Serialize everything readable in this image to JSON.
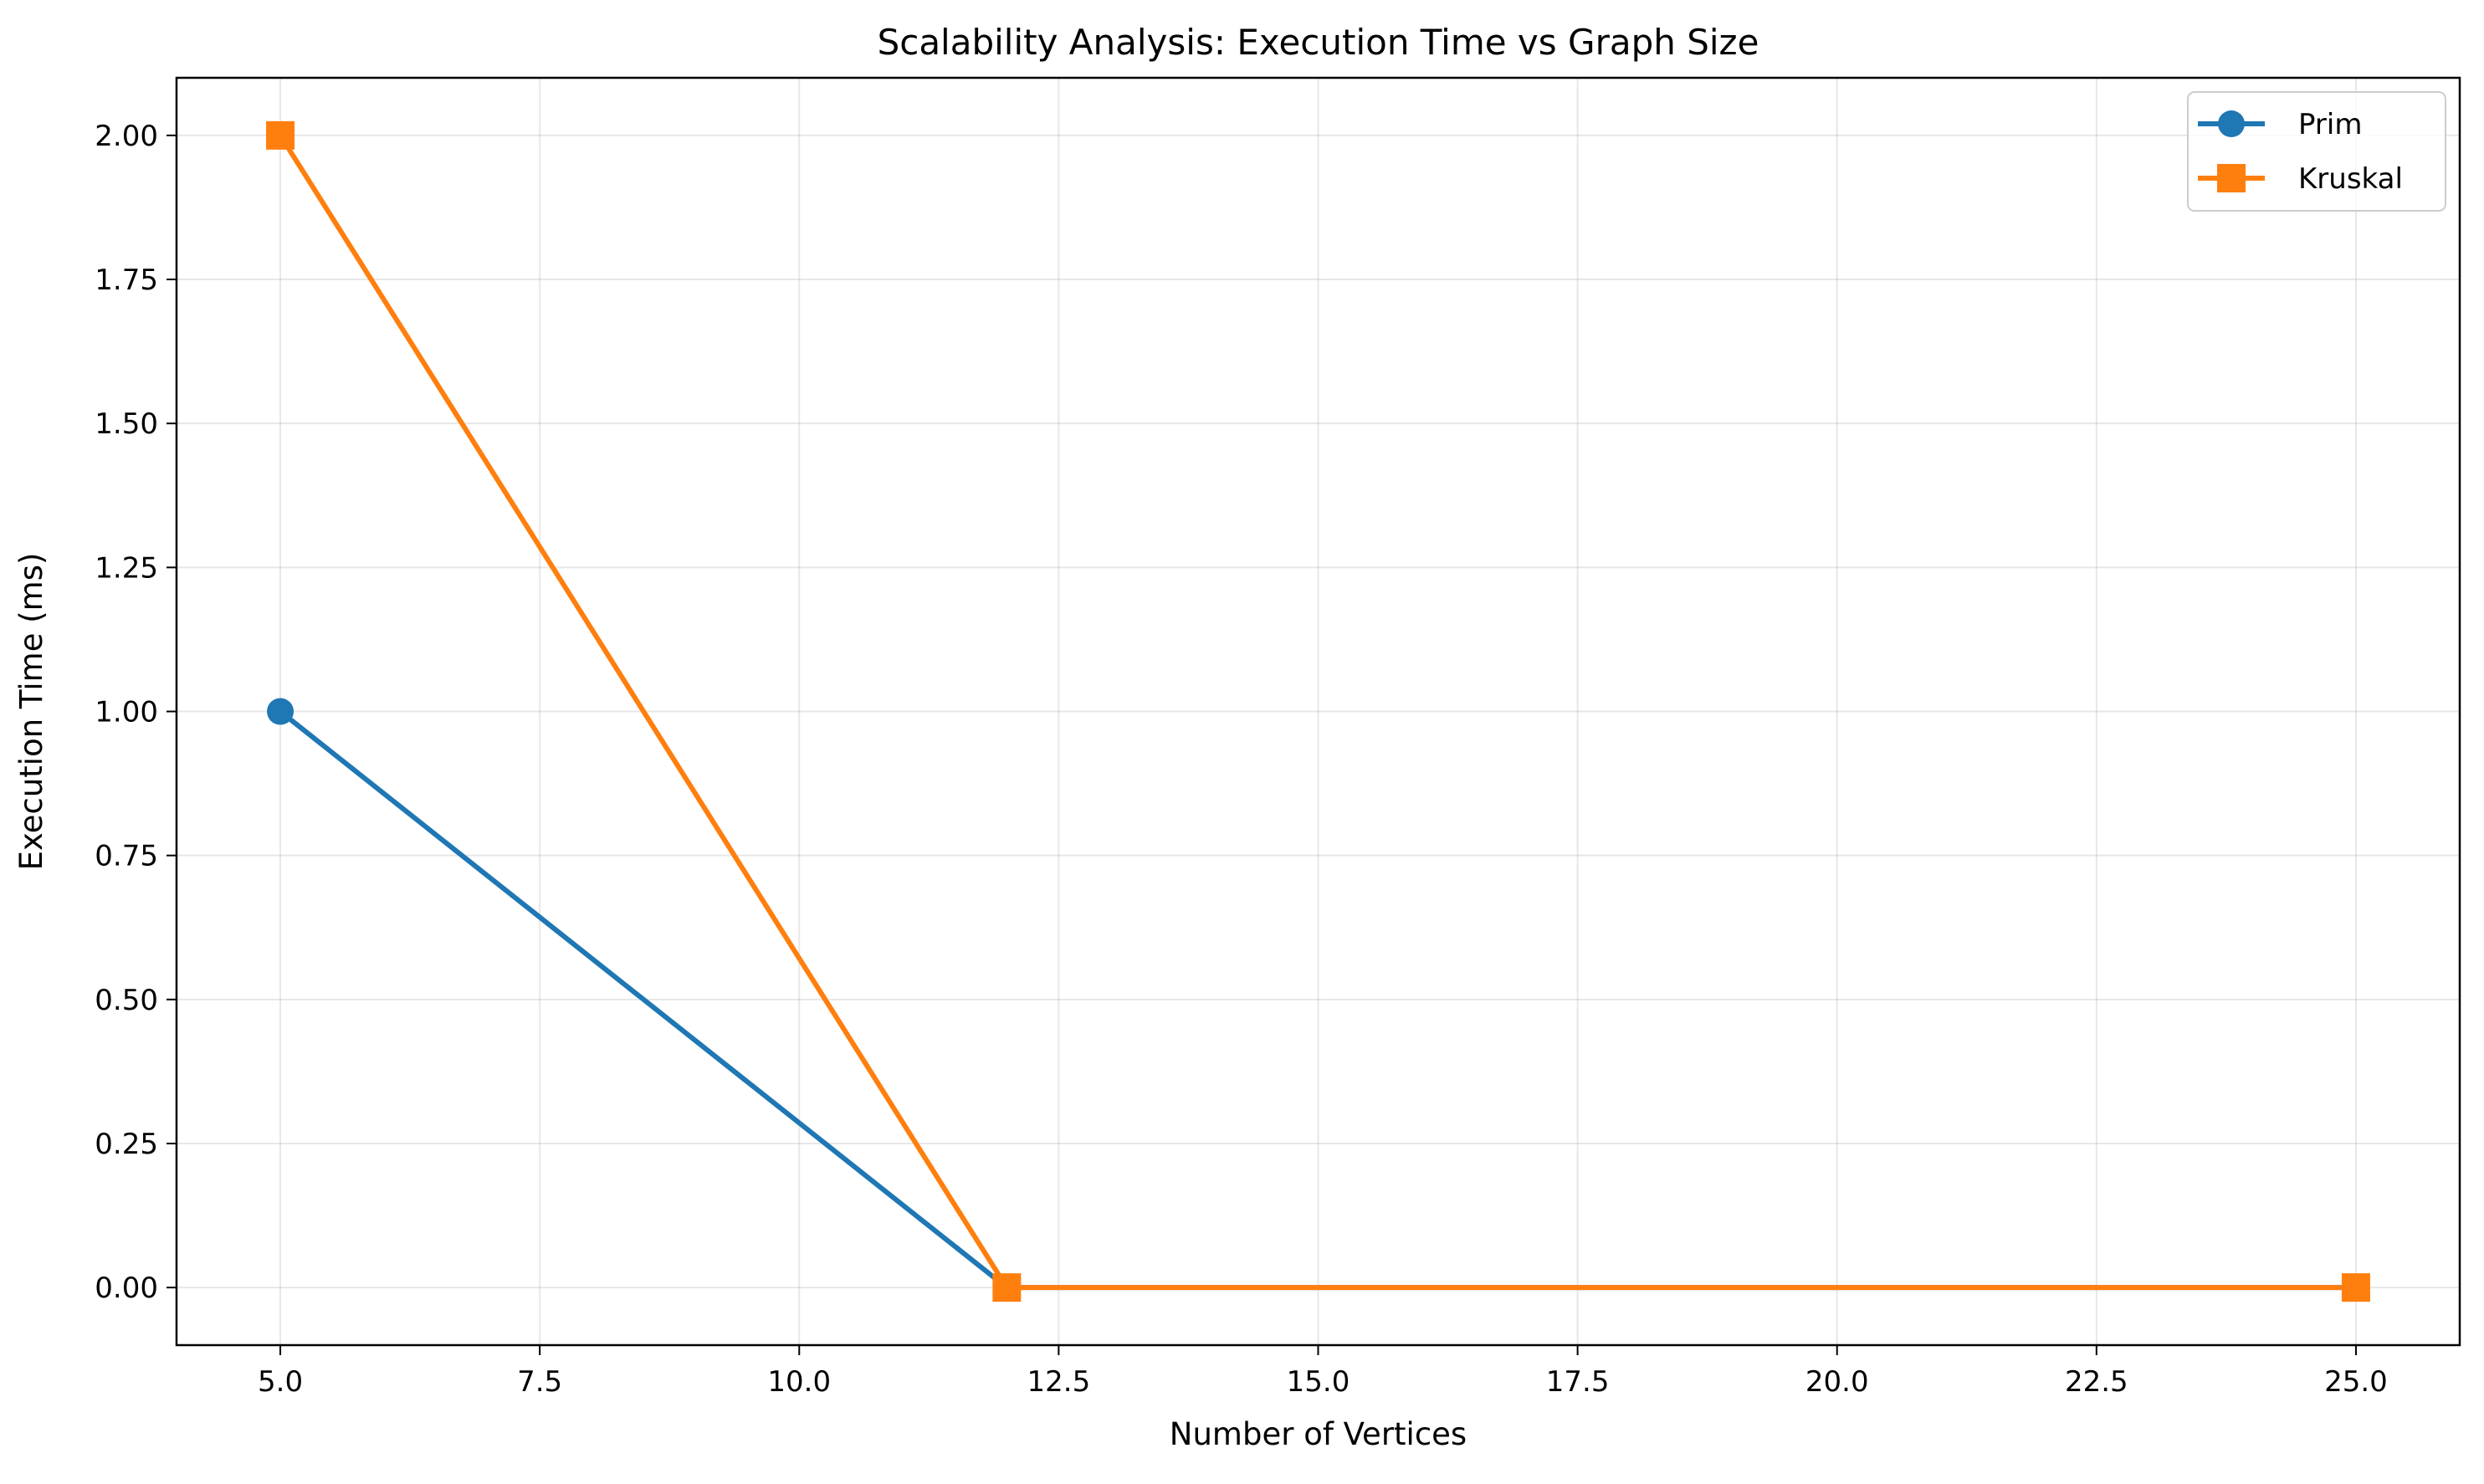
{
  "chart_data": {
    "type": "line",
    "title": "Scalability Analysis: Execution Time vs Graph Size",
    "xlabel": "Number of Vertices",
    "ylabel": "Execution Time (ms)",
    "xlim": [
      4.0,
      26.0
    ],
    "ylim": [
      -0.1,
      2.1
    ],
    "x_ticks": [
      5.0,
      7.5,
      10.0,
      12.5,
      15.0,
      17.5,
      20.0,
      22.5,
      25.0
    ],
    "x_tick_labels": [
      "5.0",
      "7.5",
      "10.0",
      "12.5",
      "15.0",
      "17.5",
      "20.0",
      "22.5",
      "25.0"
    ],
    "y_ticks": [
      0.0,
      0.25,
      0.5,
      0.75,
      1.0,
      1.25,
      1.5,
      1.75,
      2.0
    ],
    "y_tick_labels": [
      "0.00",
      "0.25",
      "0.50",
      "0.75",
      "1.00",
      "1.25",
      "1.50",
      "1.75",
      "2.00"
    ],
    "grid": true,
    "legend_position": "top-right",
    "series": [
      {
        "name": "Prim",
        "color": "#1f77b4",
        "marker": "circle",
        "x": [
          5,
          12,
          25
        ],
        "y": [
          1.0,
          0.0,
          0.0
        ]
      },
      {
        "name": "Kruskal",
        "color": "#ff7f0e",
        "marker": "square",
        "x": [
          5,
          12,
          25
        ],
        "y": [
          2.0,
          0.0,
          0.0
        ]
      }
    ]
  }
}
